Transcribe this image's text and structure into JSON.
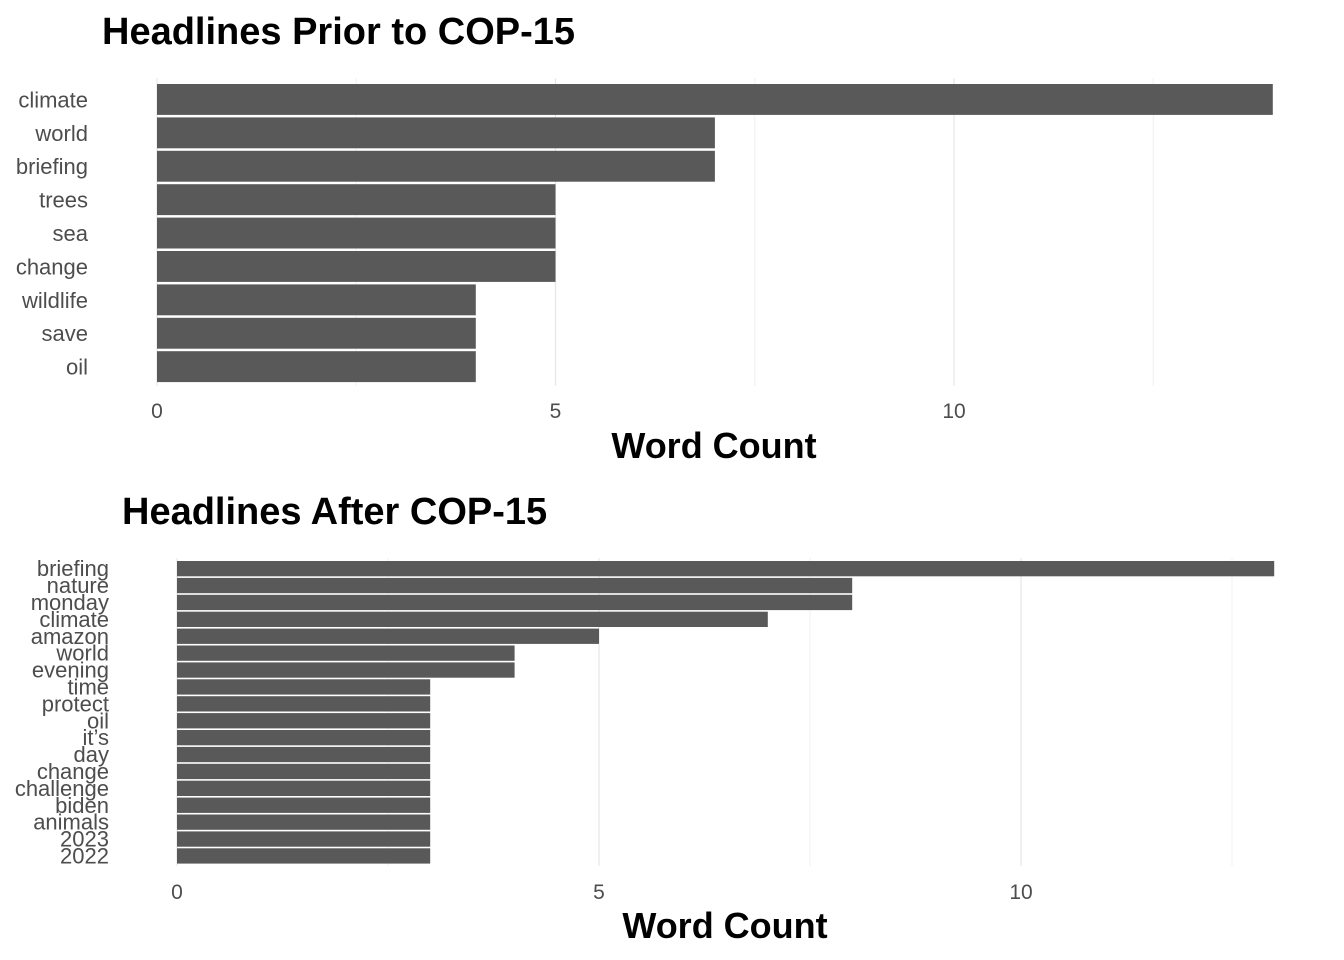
{
  "chart_data": [
    {
      "type": "bar",
      "orientation": "horizontal",
      "title": "Headlines Prior to COP-15",
      "xlabel": "Word Count",
      "ylabel": "",
      "xlim": [
        0,
        14
      ],
      "x_ticks": [
        "0",
        "5",
        "10"
      ],
      "grid": true,
      "categories": [
        "climate",
        "world",
        "briefing",
        "trees",
        "sea",
        "change",
        "wildlife",
        "save",
        "oil"
      ],
      "values": [
        14,
        7,
        7,
        5,
        5,
        5,
        4,
        4,
        4
      ],
      "bar_color": "#595959"
    },
    {
      "type": "bar",
      "orientation": "horizontal",
      "title": "Headlines After COP-15",
      "xlabel": "Word Count",
      "ylabel": "",
      "xlim": [
        0,
        13
      ],
      "x_ticks": [
        "0",
        "5",
        "10"
      ],
      "grid": true,
      "categories": [
        "briefing",
        "nature",
        "monday",
        "climate",
        "amazon",
        "world",
        "evening",
        "time",
        "protect",
        "oil",
        "it’s",
        "day",
        "change",
        "challenge",
        "biden",
        "animals",
        "2023",
        "2022"
      ],
      "values": [
        13,
        8,
        8,
        7,
        5,
        4,
        4,
        3,
        3,
        3,
        3,
        3,
        3,
        3,
        3,
        3,
        3,
        3
      ],
      "bar_color": "#595959"
    }
  ]
}
